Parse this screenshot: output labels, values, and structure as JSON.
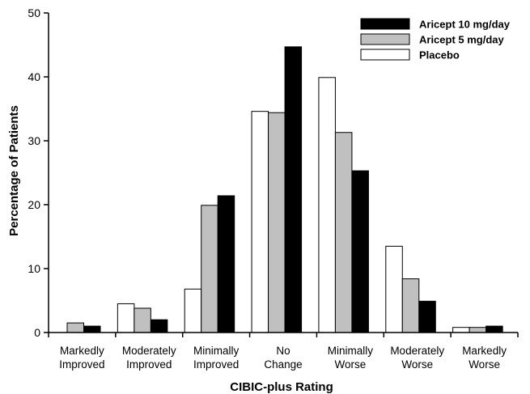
{
  "chart_data": {
    "type": "bar",
    "title": "",
    "xlabel": "CIBIC-plus Rating",
    "ylabel": "Percentage of Patients",
    "ylim": [
      0,
      50
    ],
    "yticks": [
      0,
      10,
      20,
      30,
      40,
      50
    ],
    "grid": false,
    "legend_position": "top-right",
    "categories": [
      [
        "Markedly",
        "Improved"
      ],
      [
        "Moderately",
        "Improved"
      ],
      [
        "Minimally",
        "Improved"
      ],
      [
        "No",
        "Change"
      ],
      [
        "Minimally",
        "Worse"
      ],
      [
        "Moderately",
        "Worse"
      ],
      [
        "Markedly",
        "Worse"
      ]
    ],
    "series": [
      {
        "name": "Placebo",
        "color": "#ffffff",
        "values": [
          0,
          4.5,
          6.8,
          34.6,
          39.9,
          13.5,
          0.8
        ]
      },
      {
        "name": "Aricept 5 mg/day",
        "color": "#c0c0c0",
        "values": [
          1.5,
          3.8,
          19.9,
          34.4,
          31.3,
          8.4,
          0.8
        ]
      },
      {
        "name": "Aricept 10 mg/day",
        "color": "#000000",
        "values": [
          1.0,
          2.0,
          21.4,
          44.7,
          25.3,
          4.9,
          1.0
        ]
      }
    ],
    "legend_order": [
      "Aricept 10 mg/day",
      "Aricept 5 mg/day",
      "Placebo"
    ]
  }
}
